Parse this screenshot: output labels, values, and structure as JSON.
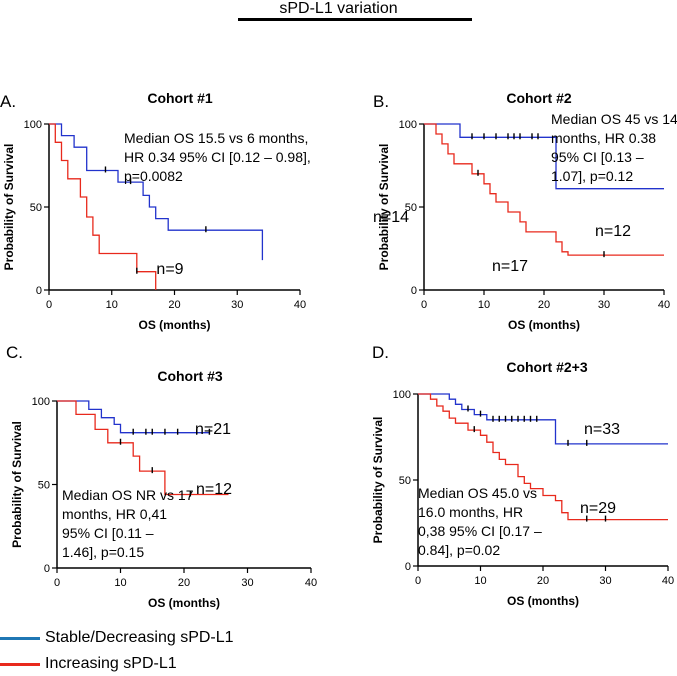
{
  "figure_title": "sPD-L1 variation",
  "legend": [
    {
      "label": "Stable/Decreasing sPD-L1",
      "color": "#1f77b4"
    },
    {
      "label": "Increasing sPD-L1",
      "color": "#e8291c"
    }
  ],
  "colors": {
    "stable_curve": "#2233cc",
    "increasing_curve": "#e8291c",
    "axis": "#000000"
  },
  "chart_data": [
    {
      "type": "line",
      "panel_letter": "A.",
      "title": "Cohort #1",
      "xlabel": "OS (months)",
      "ylabel": "Probability of Survival",
      "xlim": [
        0,
        40
      ],
      "ylim": [
        0,
        100
      ],
      "xticks": [
        0,
        10,
        20,
        30,
        40
      ],
      "yticks": [
        0,
        50,
        100
      ],
      "annotation": [
        "Median OS 15.5 vs 6 months,",
        "HR 0.34 95% CI [0.12 – 0.98],",
        "p=0.0082"
      ],
      "series": [
        {
          "name": "Stable/Decreasing sPD-L1",
          "label": "n=14",
          "color": "#2233cc",
          "steps": [
            [
              0,
              100
            ],
            [
              2,
              100
            ],
            [
              2,
              93
            ],
            [
              4,
              93
            ],
            [
              4,
              86
            ],
            [
              6,
              86
            ],
            [
              6,
              72
            ],
            [
              11,
              72
            ],
            [
              11,
              65
            ],
            [
              15,
              65
            ],
            [
              15,
              57
            ],
            [
              16,
              57
            ],
            [
              16,
              50
            ],
            [
              17,
              50
            ],
            [
              17,
              43
            ],
            [
              19,
              43
            ],
            [
              19,
              36
            ],
            [
              34,
              36
            ],
            [
              34,
              18
            ]
          ],
          "censored": [
            [
              9,
              72
            ],
            [
              13,
              65
            ],
            [
              25,
              36
            ]
          ]
        },
        {
          "name": "Increasing sPD-L1",
          "label": "n=9",
          "color": "#e8291c",
          "steps": [
            [
              0,
              100
            ],
            [
              1,
              100
            ],
            [
              1,
              89
            ],
            [
              2,
              89
            ],
            [
              2,
              78
            ],
            [
              3,
              78
            ],
            [
              3,
              67
            ],
            [
              5,
              67
            ],
            [
              5,
              56
            ],
            [
              6,
              56
            ],
            [
              6,
              44
            ],
            [
              7,
              44
            ],
            [
              7,
              33
            ],
            [
              8,
              33
            ],
            [
              8,
              22
            ],
            [
              14,
              22
            ],
            [
              14,
              11
            ],
            [
              17,
              11
            ],
            [
              17,
              0
            ]
          ],
          "censored": [
            [
              14,
              11
            ]
          ]
        }
      ]
    },
    {
      "type": "line",
      "panel_letter": "B.",
      "title": "Cohort #2",
      "xlabel": "OS (months)",
      "ylabel": "Probability of Survival",
      "xlim": [
        0,
        40
      ],
      "ylim": [
        0,
        100
      ],
      "xticks": [
        0,
        10,
        20,
        30,
        40
      ],
      "yticks": [
        0,
        50,
        100
      ],
      "annotation": [
        "Median OS 45 vs 14",
        "months, HR 0.38",
        "95% CI [0.13 –",
        "1.07], p=0.12"
      ],
      "series": [
        {
          "name": "Stable/Decreasing sPD-L1",
          "label": "n=12",
          "color": "#2233cc",
          "steps": [
            [
              0,
              100
            ],
            [
              6,
              100
            ],
            [
              6,
              92
            ],
            [
              22,
              92
            ],
            [
              22,
              61
            ],
            [
              40,
              61
            ]
          ],
          "censored": [
            [
              8,
              92
            ],
            [
              10,
              92
            ],
            [
              12,
              92
            ],
            [
              14,
              92
            ],
            [
              15,
              92
            ],
            [
              16,
              92
            ],
            [
              18,
              92
            ],
            [
              19,
              92
            ]
          ]
        },
        {
          "name": "Increasing sPD-L1",
          "label": "n=17",
          "color": "#e8291c",
          "steps": [
            [
              0,
              100
            ],
            [
              2,
              100
            ],
            [
              2,
              94
            ],
            [
              3,
              94
            ],
            [
              3,
              88
            ],
            [
              4,
              88
            ],
            [
              4,
              82
            ],
            [
              5,
              82
            ],
            [
              5,
              76
            ],
            [
              8,
              76
            ],
            [
              8,
              70
            ],
            [
              10,
              70
            ],
            [
              10,
              64
            ],
            [
              11,
              64
            ],
            [
              11,
              58
            ],
            [
              12,
              58
            ],
            [
              12,
              53
            ],
            [
              14,
              53
            ],
            [
              14,
              47
            ],
            [
              16,
              47
            ],
            [
              16,
              41
            ],
            [
              17,
              41
            ],
            [
              17,
              35
            ],
            [
              22,
              35
            ],
            [
              22,
              29
            ],
            [
              23,
              29
            ],
            [
              23,
              23
            ],
            [
              24,
              23
            ],
            [
              24,
              21
            ],
            [
              40,
              21
            ]
          ],
          "censored": [
            [
              9,
              70
            ],
            [
              30,
              21
            ]
          ]
        }
      ]
    },
    {
      "type": "line",
      "panel_letter": "C.",
      "title": "Cohort #3",
      "xlabel": "OS (months)",
      "ylabel": "Probability of Survival",
      "xlim": [
        0,
        40
      ],
      "ylim": [
        0,
        100
      ],
      "xticks": [
        0,
        10,
        20,
        30,
        40
      ],
      "yticks": [
        0,
        50,
        100
      ],
      "annotation": [
        "Median OS NR vs 17",
        "months, HR 0,41",
        "95% CI [0.11 –",
        "1.46], p=0.15"
      ],
      "series": [
        {
          "name": "Stable/Decreasing sPD-L1",
          "label": "n=21",
          "color": "#2233cc",
          "steps": [
            [
              0,
              100
            ],
            [
              5,
              100
            ],
            [
              5,
              95
            ],
            [
              7,
              95
            ],
            [
              7,
              90
            ],
            [
              9,
              90
            ],
            [
              9,
              86
            ],
            [
              10,
              86
            ],
            [
              10,
              81
            ],
            [
              24,
              81
            ]
          ],
          "censored": [
            [
              12,
              81
            ],
            [
              14,
              81
            ],
            [
              15,
              81
            ],
            [
              17,
              81
            ],
            [
              19,
              81
            ],
            [
              22,
              81
            ],
            [
              24,
              81
            ]
          ]
        },
        {
          "name": "Increasing sPD-L1",
          "label": "n=12",
          "color": "#e8291c",
          "steps": [
            [
              0,
              100
            ],
            [
              3,
              100
            ],
            [
              3,
              92
            ],
            [
              6,
              92
            ],
            [
              6,
              83
            ],
            [
              8,
              83
            ],
            [
              8,
              75
            ],
            [
              12,
              75
            ],
            [
              12,
              67
            ],
            [
              13,
              67
            ],
            [
              13,
              58
            ],
            [
              17,
              58
            ],
            [
              17,
              44
            ],
            [
              27,
              44
            ]
          ],
          "censored": [
            [
              10,
              75
            ],
            [
              15,
              58
            ],
            [
              21,
              44
            ]
          ]
        }
      ]
    },
    {
      "type": "line",
      "panel_letter": "D.",
      "title": "Cohort #2+3",
      "xlabel": "OS (months)",
      "ylabel": "Probability of Survival",
      "xlim": [
        0,
        40
      ],
      "ylim": [
        0,
        100
      ],
      "xticks": [
        0,
        10,
        20,
        30,
        40
      ],
      "yticks": [
        0,
        50,
        100
      ],
      "annotation": [
        "Median OS 45.0 vs",
        "16.0 months, HR",
        "0,38 95% CI [0.17 –",
        "0.84], p=0.02"
      ],
      "series": [
        {
          "name": "Stable/Decreasing sPD-L1",
          "label": "n=33",
          "color": "#2233cc",
          "steps": [
            [
              0,
              100
            ],
            [
              5,
              100
            ],
            [
              5,
              97
            ],
            [
              6,
              97
            ],
            [
              6,
              94
            ],
            [
              7,
              94
            ],
            [
              7,
              91
            ],
            [
              9,
              91
            ],
            [
              9,
              88
            ],
            [
              11,
              88
            ],
            [
              11,
              85
            ],
            [
              22,
              85
            ],
            [
              22,
              71
            ],
            [
              40,
              71
            ]
          ],
          "censored": [
            [
              8,
              91
            ],
            [
              10,
              88
            ],
            [
              12,
              85
            ],
            [
              13,
              85
            ],
            [
              14,
              85
            ],
            [
              15,
              85
            ],
            [
              16,
              85
            ],
            [
              17,
              85
            ],
            [
              18,
              85
            ],
            [
              19,
              85
            ],
            [
              24,
              71
            ],
            [
              27,
              71
            ]
          ]
        },
        {
          "name": "Increasing sPD-L1",
          "label": "n=29",
          "color": "#e8291c",
          "steps": [
            [
              0,
              100
            ],
            [
              2,
              100
            ],
            [
              2,
              97
            ],
            [
              3,
              97
            ],
            [
              3,
              93
            ],
            [
              4,
              93
            ],
            [
              4,
              90
            ],
            [
              5,
              90
            ],
            [
              5,
              86
            ],
            [
              6,
              86
            ],
            [
              6,
              83
            ],
            [
              8,
              83
            ],
            [
              8,
              79
            ],
            [
              10,
              79
            ],
            [
              10,
              76
            ],
            [
              11,
              76
            ],
            [
              11,
              72
            ],
            [
              12,
              72
            ],
            [
              12,
              66
            ],
            [
              13,
              66
            ],
            [
              13,
              62
            ],
            [
              14,
              62
            ],
            [
              14,
              59
            ],
            [
              16,
              59
            ],
            [
              16,
              52
            ],
            [
              17,
              52
            ],
            [
              17,
              48
            ],
            [
              18,
              48
            ],
            [
              18,
              45
            ],
            [
              20,
              45
            ],
            [
              20,
              41
            ],
            [
              22,
              41
            ],
            [
              22,
              38
            ],
            [
              23,
              38
            ],
            [
              23,
              31
            ],
            [
              24,
              31
            ],
            [
              24,
              27
            ],
            [
              40,
              27
            ]
          ],
          "censored": [
            [
              9,
              79
            ],
            [
              27,
              27
            ],
            [
              30,
              27
            ]
          ]
        }
      ]
    }
  ]
}
